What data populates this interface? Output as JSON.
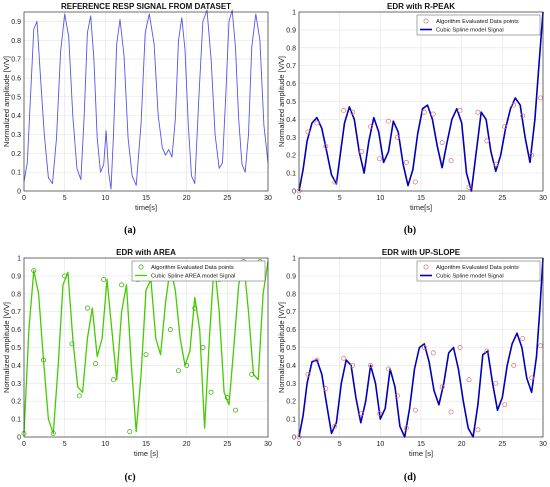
{
  "captions": [
    "(a)",
    "(b)",
    "(c)",
    "(d)"
  ],
  "colors": {
    "raw_signal": "#5555ee",
    "points": "#e07070",
    "spline_blue": "#0000bb",
    "spline_green": "#44cc00",
    "points_green": "#33aa00"
  },
  "chart_data": [
    {
      "type": "line",
      "title": "REFERENCE RESP SIGNAL FROM DATASET",
      "xlabel": "time[s]",
      "ylabel": "Normalized amplitude [V/V]",
      "xlim": [
        0,
        30
      ],
      "ylim": [
        0,
        0.95
      ],
      "xticks": [
        "0",
        "5",
        "10",
        "15",
        "20",
        "25",
        "30"
      ],
      "yticks": [
        "0",
        "0.1",
        "0.2",
        "0.3",
        "0.4",
        "0.5",
        "0.6",
        "0.7",
        "0.8",
        "0.9"
      ],
      "grid": true,
      "legend": [],
      "series": [
        {
          "x": [
            0,
            0.4,
            0.8,
            1.2,
            1.6,
            2.0,
            2.5,
            3.0,
            3.5,
            4.0,
            4.5,
            5.0,
            5.5,
            6.0,
            6.5,
            7.0,
            7.4,
            7.8,
            8.2,
            8.6,
            9.0,
            9.4,
            9.8,
            10.1,
            10.4,
            10.7,
            11.0,
            11.4,
            11.8,
            12.3,
            12.8,
            13.3,
            13.8,
            14.4,
            14.9,
            15.4,
            16.0,
            16.5,
            17.0,
            17.4,
            17.8,
            18.2,
            18.6,
            19.0,
            19.4,
            19.8,
            20.2,
            20.6,
            21.0,
            21.5,
            22.0,
            22.5,
            23.0,
            23.5,
            24.0,
            24.4,
            24.8,
            25.2,
            25.6,
            26.0,
            26.4,
            26.8,
            27.2,
            27.6,
            28.0,
            28.5,
            29.0,
            29.5,
            30.0
          ],
          "y": [
            0.05,
            0.15,
            0.5,
            0.86,
            0.9,
            0.62,
            0.3,
            0.07,
            0.04,
            0.28,
            0.74,
            0.94,
            0.82,
            0.4,
            0.12,
            0.06,
            0.4,
            0.84,
            0.93,
            0.7,
            0.28,
            0.1,
            0.14,
            0.32,
            0.1,
            0.01,
            0.3,
            0.78,
            0.91,
            0.72,
            0.28,
            0.08,
            0.03,
            0.36,
            0.84,
            0.94,
            0.78,
            0.4,
            0.23,
            0.19,
            0.22,
            0.18,
            0.38,
            0.8,
            0.92,
            0.75,
            0.35,
            0.08,
            0.04,
            0.5,
            0.9,
            0.96,
            0.7,
            0.3,
            0.12,
            0.15,
            0.5,
            0.9,
            0.96,
            0.76,
            0.38,
            0.14,
            0.1,
            0.3,
            0.76,
            0.94,
            0.8,
            0.35,
            0.15
          ]
        }
      ]
    },
    {
      "type": "line",
      "title": "EDR with R-PEAK",
      "xlabel": "time[s]",
      "ylabel": "Normalized amplitude [V/V]",
      "xlim": [
        0,
        30
      ],
      "ylim": [
        0,
        1
      ],
      "xticks": [
        "0",
        "5",
        "10",
        "15",
        "20",
        "25",
        "30"
      ],
      "yticks": [
        "0",
        "0.1",
        "0.2",
        "0.3",
        "0.4",
        "0.5",
        "0.6",
        "0.7",
        "0.8",
        "0.9",
        "1"
      ],
      "grid": true,
      "legend": [
        "Algorithm Evaluated Data points",
        "Cubic Spline model Signal"
      ],
      "points": {
        "x": [
          0,
          1.1,
          2.2,
          3.3,
          4.4,
          5.5,
          6.6,
          7.7,
          8.8,
          9.9,
          11.0,
          12.1,
          13.2,
          14.3,
          15.4,
          16.5,
          17.6,
          18.7,
          19.8,
          20.9,
          22.0,
          23.1,
          24.2,
          25.3,
          26.4,
          27.5,
          28.6,
          29.7
        ],
        "y": [
          0,
          0.33,
          0.38,
          0.25,
          0.05,
          0.45,
          0.44,
          0.22,
          0.36,
          0.18,
          0.39,
          0.3,
          0.16,
          0.05,
          0.44,
          0.43,
          0.27,
          0.17,
          0.45,
          0.02,
          0.44,
          0.28,
          0.15,
          0.36,
          0.48,
          0.42,
          0.2,
          0.52
        ]
      },
      "series": [
        {
          "x": [
            0,
            0.5,
            1.0,
            1.6,
            2.2,
            2.8,
            3.4,
            4.0,
            4.6,
            5.0,
            5.6,
            6.2,
            6.8,
            7.4,
            8.0,
            8.6,
            9.2,
            9.8,
            10.4,
            11.0,
            11.6,
            12.2,
            12.8,
            13.4,
            14.0,
            14.6,
            15.2,
            15.8,
            16.4,
            17.0,
            17.6,
            18.2,
            18.8,
            19.4,
            20.0,
            20.6,
            21.2,
            21.8,
            22.4,
            23.0,
            23.6,
            24.2,
            24.8,
            25.4,
            26.0,
            26.6,
            27.2,
            27.8,
            28.4,
            29.0,
            29.5,
            30.0
          ],
          "y": [
            0.0,
            0.12,
            0.28,
            0.38,
            0.41,
            0.35,
            0.22,
            0.09,
            0.04,
            0.18,
            0.38,
            0.47,
            0.4,
            0.22,
            0.1,
            0.28,
            0.41,
            0.33,
            0.16,
            0.22,
            0.39,
            0.33,
            0.15,
            0.03,
            0.12,
            0.32,
            0.46,
            0.48,
            0.4,
            0.25,
            0.13,
            0.27,
            0.4,
            0.46,
            0.38,
            0.1,
            0.0,
            0.22,
            0.44,
            0.4,
            0.22,
            0.11,
            0.2,
            0.35,
            0.46,
            0.52,
            0.48,
            0.3,
            0.16,
            0.4,
            0.7,
            1.0
          ]
        }
      ]
    },
    {
      "type": "line",
      "title": "EDR with AREA",
      "xlabel": "time [s]",
      "ylabel": "Normalized amplitude [V/V]",
      "xlim": [
        0,
        30
      ],
      "ylim": [
        0,
        1
      ],
      "xticks": [
        "0",
        "5",
        "10",
        "15",
        "20",
        "25",
        "30"
      ],
      "yticks": [
        "0",
        "0.1",
        "0.2",
        "0.3",
        "0.4",
        "0.5",
        "0.6",
        "0.7",
        "0.8",
        "0.9",
        "1"
      ],
      "grid": true,
      "legend": [
        "Algorithm Evaluated Data points",
        "Cubic Spline AREA model Signal"
      ],
      "points": {
        "x": [
          0,
          1.2,
          2.4,
          3.6,
          5.0,
          5.9,
          6.8,
          7.8,
          8.8,
          9.8,
          11.0,
          12.0,
          13.0,
          14.0,
          15.0,
          16.0,
          17.0,
          18.0,
          19.0,
          20.0,
          21.0,
          22.0,
          23.0,
          24.0,
          25.0,
          26.0,
          27.0,
          28.0,
          29.0
        ],
        "y": [
          0.02,
          0.93,
          0.43,
          0.02,
          0.9,
          0.52,
          0.23,
          0.72,
          0.41,
          0.88,
          0.32,
          0.85,
          0.03,
          0.88,
          0.46,
          0.9,
          0.97,
          0.6,
          0.37,
          0.4,
          0.72,
          0.5,
          0.25,
          0.88,
          0.22,
          0.15,
          0.98,
          0.35,
          0.98
        ]
      },
      "series": [
        {
          "x": [
            0,
            0.6,
            1.2,
            1.8,
            2.4,
            3.0,
            3.6,
            4.2,
            4.8,
            5.4,
            6.0,
            6.6,
            7.2,
            7.8,
            8.4,
            9.0,
            9.6,
            10.2,
            10.8,
            11.4,
            12.0,
            12.6,
            13.2,
            13.8,
            14.4,
            15.0,
            15.6,
            16.2,
            16.8,
            17.4,
            18.0,
            18.6,
            19.2,
            19.8,
            20.4,
            21.0,
            21.6,
            22.2,
            22.8,
            23.4,
            24.0,
            24.6,
            25.2,
            25.8,
            26.4,
            27.0,
            27.6,
            28.2,
            28.8,
            29.4,
            30.0
          ],
          "y": [
            0.02,
            0.6,
            0.93,
            0.8,
            0.43,
            0.1,
            0.02,
            0.4,
            0.85,
            0.92,
            0.55,
            0.28,
            0.25,
            0.55,
            0.72,
            0.45,
            0.55,
            0.88,
            0.6,
            0.32,
            0.7,
            0.85,
            0.4,
            0.03,
            0.35,
            0.82,
            0.88,
            0.55,
            0.46,
            0.75,
            0.95,
            0.82,
            0.55,
            0.4,
            0.48,
            0.78,
            0.6,
            0.05,
            0.55,
            0.98,
            0.7,
            0.25,
            0.18,
            0.5,
            0.85,
            0.98,
            0.7,
            0.35,
            0.32,
            0.8,
            0.98
          ]
        }
      ]
    },
    {
      "type": "line",
      "title": "EDR with UP-SLOPE",
      "xlabel": "time [s]",
      "ylabel": "Normalized amplitude [V/V]",
      "xlim": [
        0,
        30
      ],
      "ylim": [
        0,
        1
      ],
      "xticks": [
        "0",
        "5",
        "10",
        "15",
        "20",
        "25",
        "30"
      ],
      "yticks": [
        "0",
        "0.1",
        "0.2",
        "0.3",
        "0.4",
        "0.5",
        "0.6",
        "0.7",
        "0.8",
        "0.9",
        "1"
      ],
      "grid": true,
      "legend": [
        "Algorithm Evaluated Data points",
        "Cubic Spline model Signal"
      ],
      "points": {
        "x": [
          0,
          1.1,
          2.2,
          3.3,
          4.4,
          5.5,
          6.6,
          7.7,
          8.8,
          9.9,
          11.0,
          12.1,
          13.2,
          14.3,
          15.4,
          16.5,
          17.6,
          18.7,
          19.8,
          20.9,
          22.0,
          23.1,
          24.2,
          25.3,
          26.4,
          27.5,
          28.6,
          29.7
        ],
        "y": [
          0,
          0.35,
          0.43,
          0.27,
          0.06,
          0.44,
          0.4,
          0.13,
          0.4,
          0.13,
          0.38,
          0.23,
          0.05,
          0.15,
          0.5,
          0.47,
          0.28,
          0.14,
          0.5,
          0.32,
          0.04,
          0.48,
          0.3,
          0.18,
          0.4,
          0.55,
          0.33,
          0.51
        ]
      },
      "series": [
        {
          "x": [
            0,
            0.5,
            1.0,
            1.6,
            2.2,
            2.8,
            3.4,
            4.0,
            4.6,
            5.2,
            5.8,
            6.4,
            7.0,
            7.6,
            8.2,
            8.8,
            9.4,
            10.0,
            10.6,
            11.2,
            11.8,
            12.4,
            13.0,
            13.6,
            14.2,
            14.8,
            15.4,
            16.0,
            16.6,
            17.2,
            17.8,
            18.4,
            19.0,
            19.6,
            20.2,
            20.8,
            21.4,
            22.0,
            22.6,
            23.2,
            23.8,
            24.4,
            25.0,
            25.6,
            26.2,
            26.8,
            27.4,
            28.0,
            28.6,
            29.2,
            29.6,
            30.0
          ],
          "y": [
            0.0,
            0.12,
            0.3,
            0.42,
            0.43,
            0.35,
            0.18,
            0.02,
            0.08,
            0.3,
            0.43,
            0.4,
            0.22,
            0.08,
            0.2,
            0.4,
            0.3,
            0.1,
            0.16,
            0.38,
            0.28,
            0.06,
            0.0,
            0.16,
            0.38,
            0.5,
            0.52,
            0.42,
            0.26,
            0.18,
            0.3,
            0.47,
            0.5,
            0.38,
            0.2,
            0.05,
            0.0,
            0.18,
            0.46,
            0.48,
            0.3,
            0.15,
            0.22,
            0.4,
            0.52,
            0.58,
            0.5,
            0.33,
            0.25,
            0.45,
            0.7,
            1.0
          ]
        }
      ]
    }
  ]
}
